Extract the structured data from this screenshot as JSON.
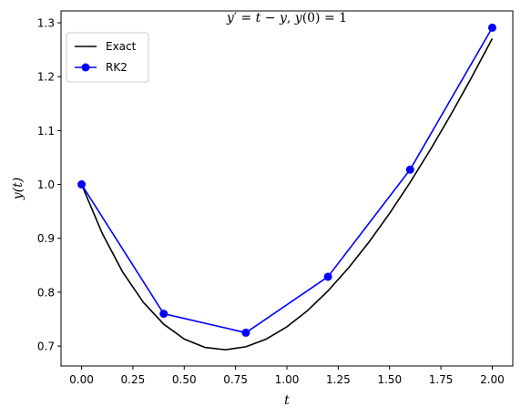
{
  "chart_data": {
    "type": "line",
    "title": "y′ = t − y, y(0) = 1",
    "title_parts": [
      {
        "text": "y",
        "italic": true
      },
      {
        "text": "′ = ",
        "italic": false
      },
      {
        "text": "t",
        "italic": true
      },
      {
        "text": " − ",
        "italic": false
      },
      {
        "text": "y",
        "italic": true
      },
      {
        "text": ", ",
        "italic": false
      },
      {
        "text": "y",
        "italic": true
      },
      {
        "text": "(0) = 1",
        "italic": false
      }
    ],
    "xlabel": "t",
    "ylabel": "y(t)",
    "xlim": [
      -0.1,
      2.1
    ],
    "ylim": [
      0.663,
      1.322
    ],
    "x_ticks": [
      0.0,
      0.25,
      0.5,
      0.75,
      1.0,
      1.25,
      1.5,
      1.75,
      2.0
    ],
    "x_tick_labels": [
      "0.00",
      "0.25",
      "0.50",
      "0.75",
      "1.00",
      "1.25",
      "1.50",
      "1.75",
      "2.00"
    ],
    "y_ticks": [
      0.7,
      0.8,
      0.9,
      1.0,
      1.1,
      1.2,
      1.3
    ],
    "y_tick_labels": [
      "0.7",
      "0.8",
      "0.9",
      "1.0",
      "1.1",
      "1.2",
      "1.3"
    ],
    "grid": false,
    "legend_position": "top-left",
    "series": [
      {
        "name": "Exact",
        "color": "#000000",
        "marker": "none",
        "x": [
          0.0,
          0.1,
          0.2,
          0.3,
          0.4,
          0.5,
          0.6,
          0.7,
          0.8,
          0.9,
          1.0,
          1.1,
          1.2,
          1.3,
          1.4,
          1.5,
          1.6,
          1.7,
          1.8,
          1.9,
          2.0
        ],
        "y": [
          1.0,
          0.9097,
          0.8375,
          0.7816,
          0.7406,
          0.7131,
          0.6976,
          0.6932,
          0.6987,
          0.7131,
          0.7358,
          0.7657,
          0.8024,
          0.8451,
          0.8932,
          0.9463,
          1.0038,
          1.0654,
          1.1306,
          1.1991,
          1.2707
        ]
      },
      {
        "name": "RK2",
        "color": "#0000ff",
        "marker": "circle",
        "x": [
          0.0,
          0.4,
          0.8,
          1.2,
          1.6,
          2.0
        ],
        "y": [
          1.0,
          0.76,
          0.7248,
          0.8287,
          1.0275,
          1.2909
        ]
      }
    ]
  }
}
